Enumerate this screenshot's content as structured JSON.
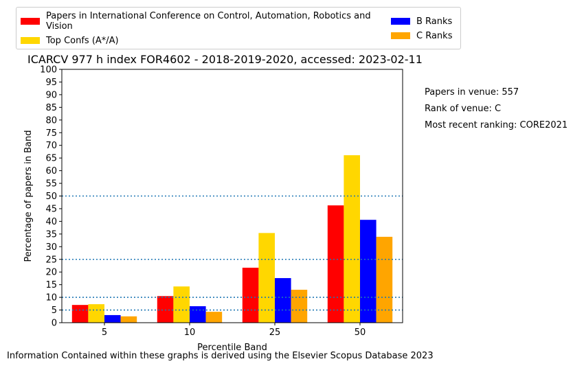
{
  "chart_data": {
    "type": "bar",
    "title": "ICARCV 977 h index FOR4602 - 2018-2019-2020, accessed: 2023-02-11",
    "xlabel": "Percentile Band",
    "ylabel": "Percentage of papers in Band",
    "categories": [
      "5",
      "10",
      "25",
      "50"
    ],
    "ylim": [
      0,
      100
    ],
    "yticks": [
      "0",
      "5",
      "10",
      "15",
      "20",
      "25",
      "30",
      "35",
      "40",
      "45",
      "50",
      "55",
      "60",
      "65",
      "70",
      "75",
      "80",
      "85",
      "90",
      "95",
      "100"
    ],
    "reference_lines": [
      5,
      10,
      25,
      50
    ],
    "series": [
      {
        "name": "Papers in International Conference on Control, Automation, Robotics and Vision",
        "color": "#ff0000",
        "values": [
          7.0,
          10.5,
          21.7,
          46.3
        ]
      },
      {
        "name": "Top Confs (A*/A)",
        "color": "#ffd700",
        "values": [
          7.3,
          14.3,
          35.4,
          66.1
        ]
      },
      {
        "name": "B Ranks",
        "color": "#0000ff",
        "values": [
          3.0,
          6.5,
          17.6,
          40.6
        ]
      },
      {
        "name": "C Ranks",
        "color": "#ffa500",
        "values": [
          2.5,
          4.3,
          13.0,
          33.9
        ]
      }
    ],
    "legend": {
      "placement": "top",
      "items": [
        "Papers in International Conference on Control, Automation, Robotics and Vision",
        "Top Confs (A*/A)",
        "B Ranks",
        "C Ranks"
      ]
    },
    "grid": false,
    "reference_line_color": "#1f77b4"
  },
  "side_notes": {
    "papers": "Papers in venue: 557",
    "rank": "Rank of venue: C",
    "recent": "Most recent ranking: CORE2021"
  },
  "footer": "Information Contained within these graphs is derived using the Elsevier Scopus Database 2023"
}
